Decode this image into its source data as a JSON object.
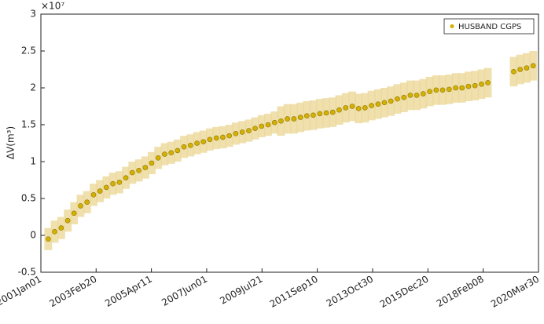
{
  "chart_data": {
    "type": "scatter",
    "y_label": "ΔV(m³)",
    "y_multiplier": "×10⁷",
    "legend": "upper right",
    "x": [
      "2001-04-15",
      "2001-07-15",
      "2001-10-15",
      "2002-01-15",
      "2002-04-15",
      "2002-07-15",
      "2002-10-15",
      "2003-01-15",
      "2003-04-15",
      "2003-07-15",
      "2003-10-15",
      "2004-01-15",
      "2004-04-15",
      "2004-07-15",
      "2004-10-15",
      "2005-01-15",
      "2005-04-15",
      "2005-07-15",
      "2005-10-15",
      "2006-01-15",
      "2006-04-15",
      "2006-07-15",
      "2006-10-15",
      "2007-01-15",
      "2007-04-15",
      "2007-07-15",
      "2007-10-15",
      "2008-01-15",
      "2008-04-15",
      "2008-07-15",
      "2008-10-15",
      "2009-01-15",
      "2009-04-15",
      "2009-07-15",
      "2009-10-15",
      "2010-01-15",
      "2010-04-15",
      "2010-07-15",
      "2010-10-15",
      "2011-01-15",
      "2011-04-15",
      "2011-07-15",
      "2011-10-15",
      "2012-01-15",
      "2012-04-15",
      "2012-07-15",
      "2012-10-15",
      "2013-01-15",
      "2013-04-15",
      "2013-07-15",
      "2013-10-15",
      "2014-01-15",
      "2014-04-15",
      "2014-07-15",
      "2014-10-15",
      "2015-01-15",
      "2015-04-15",
      "2015-07-15",
      "2015-10-15",
      "2016-01-15",
      "2016-04-15",
      "2016-07-15",
      "2016-10-15",
      "2017-01-15",
      "2017-04-15",
      "2017-07-15",
      "2017-10-15",
      "2018-01-15",
      "2018-04-15",
      "2019-04-15",
      "2019-07-15",
      "2019-10-15",
      "2020-01-15"
    ],
    "series": [
      {
        "name": "HUSBAND CGPS",
        "color": "#d4b000",
        "band_color": "#ecd89a",
        "values": [
          -0.05,
          0.05,
          0.1,
          0.2,
          0.3,
          0.4,
          0.45,
          0.55,
          0.6,
          0.65,
          0.7,
          0.72,
          0.78,
          0.85,
          0.88,
          0.92,
          0.98,
          1.05,
          1.1,
          1.12,
          1.15,
          1.2,
          1.22,
          1.25,
          1.27,
          1.3,
          1.32,
          1.33,
          1.35,
          1.38,
          1.4,
          1.42,
          1.45,
          1.48,
          1.5,
          1.53,
          1.55,
          1.58,
          1.58,
          1.6,
          1.62,
          1.63,
          1.65,
          1.66,
          1.67,
          1.7,
          1.73,
          1.75,
          1.72,
          1.73,
          1.76,
          1.78,
          1.8,
          1.82,
          1.85,
          1.87,
          1.9,
          1.9,
          1.92,
          1.95,
          1.97,
          1.97,
          1.98,
          2.0,
          2.0,
          2.02,
          2.03,
          2.05,
          2.07,
          2.22,
          2.25,
          2.27,
          2.3
        ],
        "errors": [
          0.15,
          0.15,
          0.15,
          0.15,
          0.15,
          0.15,
          0.15,
          0.15,
          0.15,
          0.15,
          0.15,
          0.15,
          0.15,
          0.15,
          0.15,
          0.15,
          0.15,
          0.15,
          0.15,
          0.15,
          0.15,
          0.15,
          0.15,
          0.15,
          0.15,
          0.15,
          0.15,
          0.15,
          0.15,
          0.15,
          0.15,
          0.15,
          0.15,
          0.15,
          0.15,
          0.15,
          0.2,
          0.2,
          0.2,
          0.2,
          0.2,
          0.2,
          0.2,
          0.2,
          0.2,
          0.2,
          0.2,
          0.2,
          0.2,
          0.2,
          0.2,
          0.2,
          0.2,
          0.2,
          0.2,
          0.2,
          0.2,
          0.2,
          0.2,
          0.2,
          0.2,
          0.2,
          0.2,
          0.2,
          0.2,
          0.2,
          0.2,
          0.2,
          0.2,
          0.2,
          0.2,
          0.2,
          0.2
        ]
      }
    ],
    "xlim": [
      "2001-01-01",
      "2020-03-30"
    ],
    "xticks": [
      {
        "value": "2001-01-01",
        "label": "2001Jan01"
      },
      {
        "value": "2003-02-20",
        "label": "2003Feb20"
      },
      {
        "value": "2005-04-11",
        "label": "2005Apr11"
      },
      {
        "value": "2007-06-01",
        "label": "2007Jun01"
      },
      {
        "value": "2009-07-21",
        "label": "2009Jul21"
      },
      {
        "value": "2011-09-10",
        "label": "2011Sep10"
      },
      {
        "value": "2013-10-30",
        "label": "2013Oct30"
      },
      {
        "value": "2015-12-20",
        "label": "2015Dec20"
      },
      {
        "value": "2018-02-08",
        "label": "2018Feb08"
      },
      {
        "value": "2020-03-30",
        "label": "2020Mar30"
      }
    ],
    "ylim": [
      -0.5,
      3
    ],
    "yticks": [
      -0.5,
      0,
      0.5,
      1,
      1.5,
      2,
      2.5,
      3
    ]
  }
}
